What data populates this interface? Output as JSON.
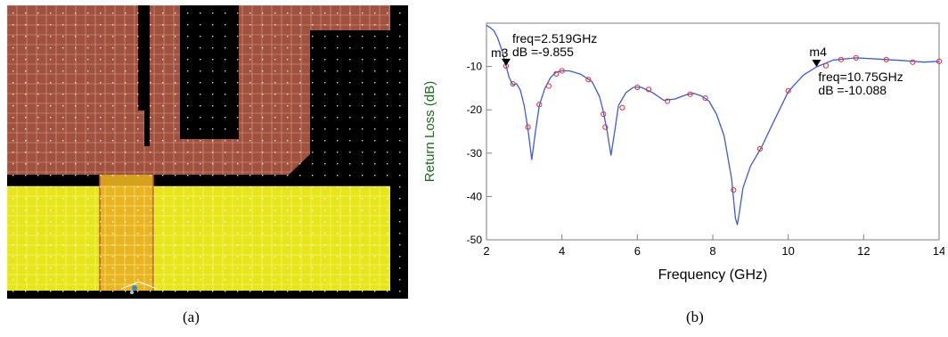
{
  "captions": {
    "a": "(a)",
    "b": "(b)"
  },
  "layout": {
    "colors": {
      "background": "#000000",
      "radiator_fill": "#a1523e",
      "ground_fill": "#e6e619",
      "feedline_fill": "#e8b020",
      "grid_dot": "#ffffff"
    }
  },
  "chart_data": {
    "type": "line",
    "title": "",
    "xlabel": "Frequency (GHz)",
    "ylabel": "Return Loss (dB)",
    "xlim": [
      2,
      14
    ],
    "ylim": [
      -50,
      0
    ],
    "xticks": [
      2,
      4,
      6,
      8,
      10,
      12,
      14
    ],
    "yticks": [
      -10,
      -20,
      -30,
      -40,
      -50
    ],
    "grid": false,
    "legend": "none",
    "series": [
      {
        "color": "#3b5bdb",
        "points": [
          [
            2.0,
            -0.5
          ],
          [
            2.1,
            -1.0
          ],
          [
            2.2,
            -1.8
          ],
          [
            2.3,
            -3.5
          ],
          [
            2.4,
            -6.0
          ],
          [
            2.519,
            -9.855
          ],
          [
            2.6,
            -12.5
          ],
          [
            2.7,
            -14.2
          ],
          [
            2.8,
            -14.0
          ],
          [
            2.9,
            -15.5
          ],
          [
            3.0,
            -19.0
          ],
          [
            3.1,
            -24.5
          ],
          [
            3.2,
            -31.5
          ],
          [
            3.3,
            -25.0
          ],
          [
            3.4,
            -19.0
          ],
          [
            3.55,
            -15.0
          ],
          [
            3.7,
            -12.5
          ],
          [
            3.85,
            -11.3
          ],
          [
            4.0,
            -11.0
          ],
          [
            4.2,
            -11.0
          ],
          [
            4.5,
            -11.8
          ],
          [
            4.8,
            -13.5
          ],
          [
            5.0,
            -17.0
          ],
          [
            5.1,
            -20.5
          ],
          [
            5.2,
            -25.0
          ],
          [
            5.3,
            -30.5
          ],
          [
            5.4,
            -25.0
          ],
          [
            5.5,
            -19.0
          ],
          [
            5.7,
            -16.0
          ],
          [
            5.9,
            -14.8
          ],
          [
            6.1,
            -14.8
          ],
          [
            6.4,
            -16.0
          ],
          [
            6.7,
            -17.8
          ],
          [
            7.0,
            -17.5
          ],
          [
            7.3,
            -16.5
          ],
          [
            7.5,
            -16.2
          ],
          [
            7.7,
            -16.8
          ],
          [
            7.9,
            -18.0
          ],
          [
            8.1,
            -21.0
          ],
          [
            8.3,
            -26.0
          ],
          [
            8.5,
            -36.0
          ],
          [
            8.6,
            -45.0
          ],
          [
            8.65,
            -46.5
          ],
          [
            8.7,
            -44.0
          ],
          [
            8.8,
            -38.0
          ],
          [
            9.0,
            -33.0
          ],
          [
            9.3,
            -28.5
          ],
          [
            9.6,
            -23.0
          ],
          [
            10.0,
            -15.8
          ],
          [
            10.4,
            -12.0
          ],
          [
            10.75,
            -10.088
          ],
          [
            11.2,
            -8.5
          ],
          [
            11.8,
            -8.0
          ],
          [
            12.4,
            -8.3
          ],
          [
            13.0,
            -8.6
          ],
          [
            13.6,
            -9.0
          ],
          [
            14.0,
            -8.8
          ]
        ],
        "markers": [
          [
            2.519,
            -9.855
          ],
          [
            2.7,
            -14.0
          ],
          [
            3.1,
            -24.0
          ],
          [
            3.4,
            -18.8
          ],
          [
            3.65,
            -14.5
          ],
          [
            3.85,
            -11.7
          ],
          [
            4.0,
            -11.0
          ],
          [
            4.7,
            -13.0
          ],
          [
            5.1,
            -21.0
          ],
          [
            5.15,
            -24.0
          ],
          [
            5.6,
            -19.5
          ],
          [
            6.0,
            -14.8
          ],
          [
            6.3,
            -15.3
          ],
          [
            6.8,
            -18.0
          ],
          [
            7.4,
            -16.4
          ],
          [
            7.8,
            -17.3
          ],
          [
            8.55,
            -38.5
          ],
          [
            9.25,
            -29.0
          ],
          [
            10.0,
            -15.6
          ],
          [
            11.0,
            -9.8
          ],
          [
            11.4,
            -8.4
          ],
          [
            11.8,
            -8.0
          ],
          [
            12.6,
            -8.4
          ],
          [
            13.3,
            -9.0
          ],
          [
            14.0,
            -8.8
          ]
        ]
      }
    ],
    "annotations": [
      {
        "name": "m3",
        "x": 2.519,
        "y": -9.855,
        "line1": "freq=2.519GHz",
        "line2": "dB =-9.855"
      },
      {
        "name": "m4",
        "x": 10.75,
        "y": -10.088,
        "line1": "freq=10.75GHz",
        "line2": "dB =-10.088"
      }
    ],
    "colors": {
      "axis": "#7f7f7f",
      "text": "#000000",
      "ylabel": "#1a6b1a",
      "marker": "#e03131"
    }
  }
}
